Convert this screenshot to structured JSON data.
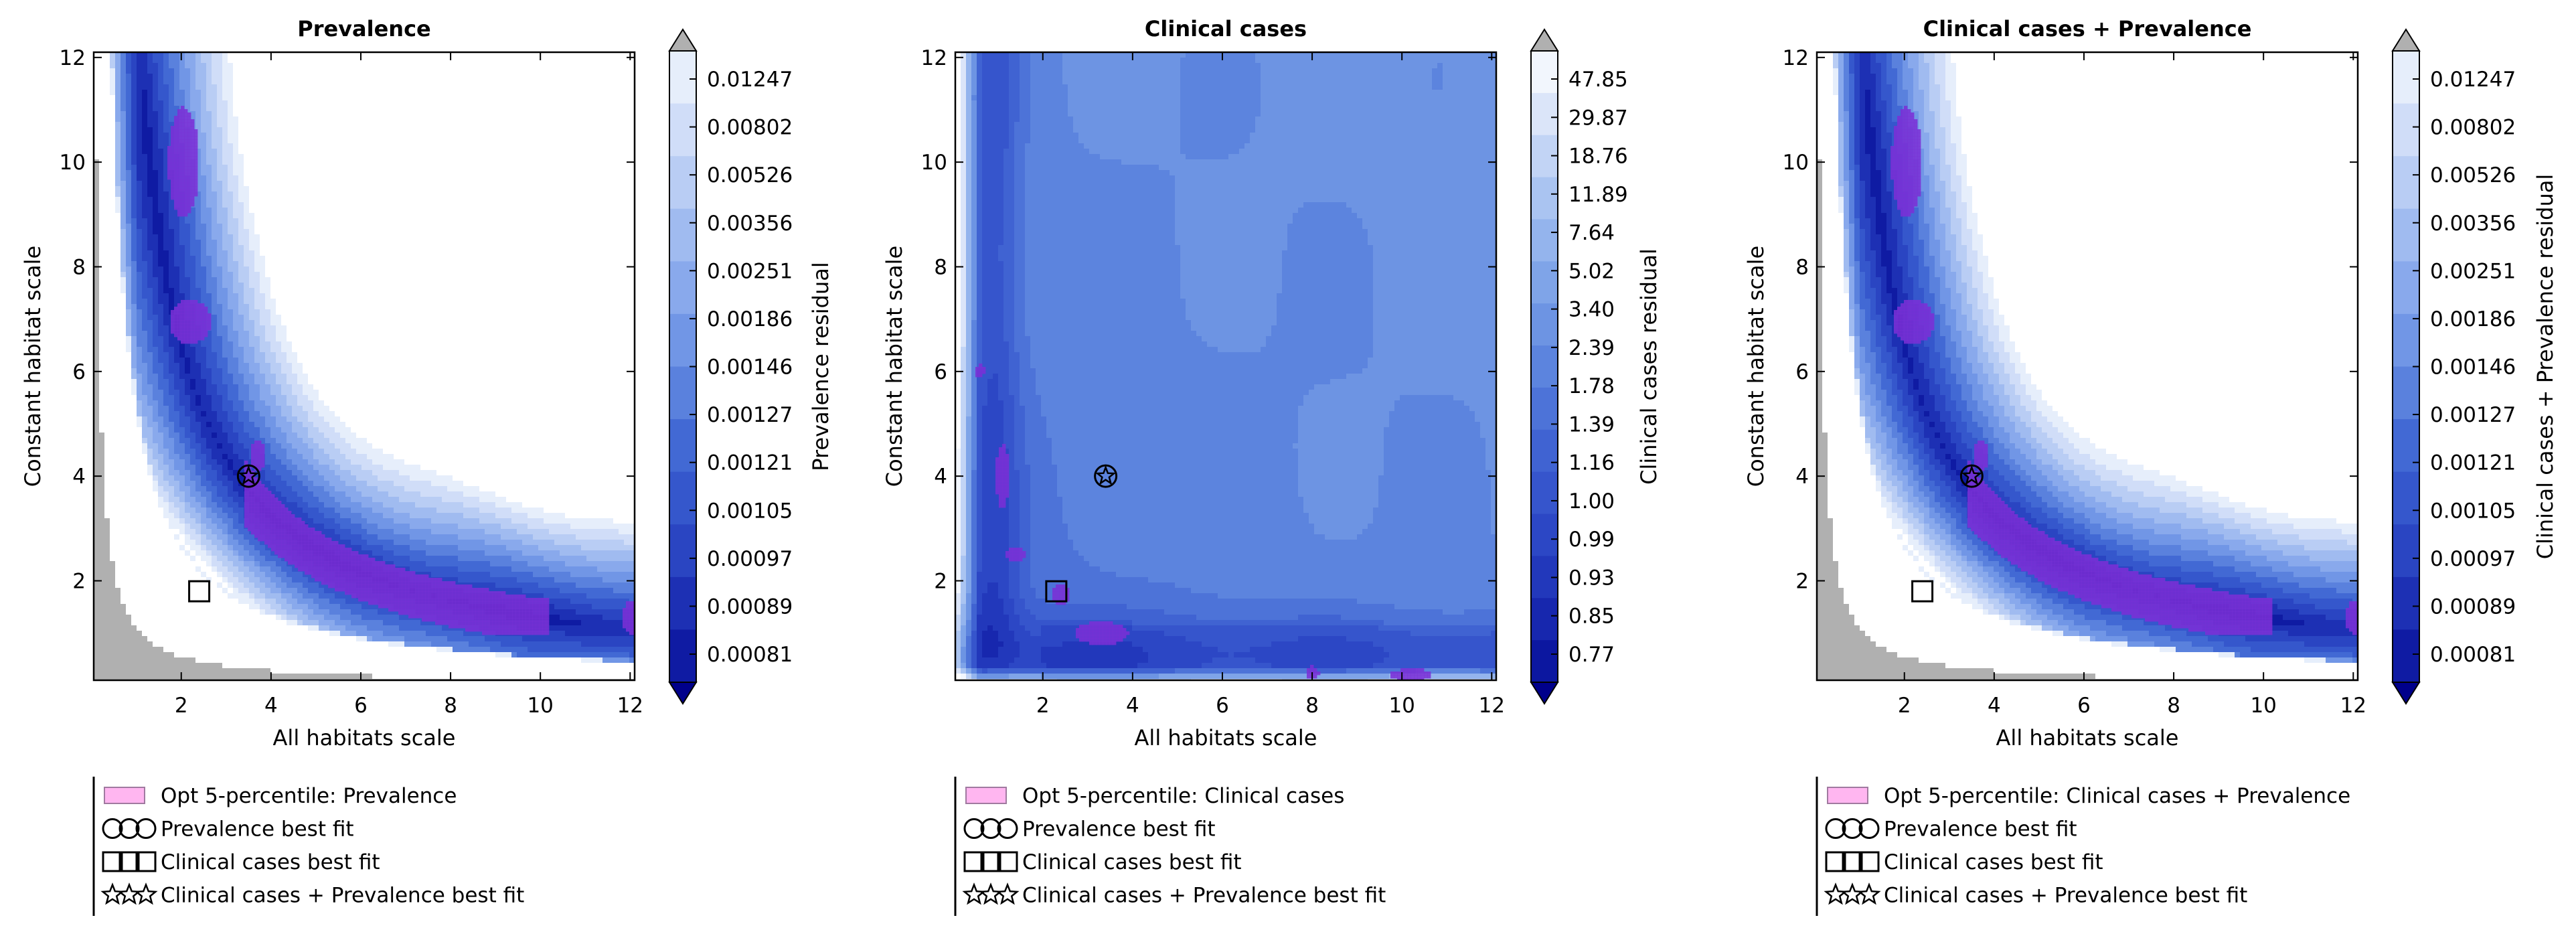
{
  "chart_data": [
    {
      "type": "heatmap",
      "title": "Prevalence",
      "xlabel": "All habitats scale",
      "ylabel": "Constant habitat scale",
      "xlim": [
        0.05,
        12.1
      ],
      "ylim": [
        0.1,
        12.1
      ],
      "xticks": [
        2,
        4,
        6,
        8,
        10,
        12
      ],
      "yticks": [
        2,
        4,
        6,
        8,
        10,
        12
      ],
      "colorbar": {
        "label": "Prevalence residual",
        "ticks": [
          "0.01247",
          "0.00802",
          "0.00526",
          "0.00356",
          "0.00251",
          "0.00186",
          "0.00146",
          "0.00127",
          "0.00121",
          "0.00105",
          "0.00097",
          "0.00089",
          "0.00081"
        ]
      },
      "opt_region": "valley",
      "markers": [
        {
          "type": "circle",
          "series": "Prevalence best fit",
          "x": 3.5,
          "y": 4.0
        },
        {
          "type": "star",
          "series": "Clinical cases + Prevalence best fit",
          "x": 3.5,
          "y": 4.0
        },
        {
          "type": "square",
          "series": "Clinical cases best fit",
          "x": 2.4,
          "y": 1.8
        }
      ],
      "legend": [
        {
          "symbol": "patch",
          "label": "Opt 5-percentile: Prevalence"
        },
        {
          "symbol": "circle",
          "label": "Prevalence best fit"
        },
        {
          "symbol": "square",
          "label": "Clinical cases best fit"
        },
        {
          "symbol": "star",
          "label": "Clinical cases + Prevalence best fit"
        }
      ]
    },
    {
      "type": "heatmap",
      "title": "Clinical cases",
      "xlabel": "All habitats scale",
      "ylabel": "Constant habitat scale",
      "xlim": [
        0.05,
        12.1
      ],
      "ylim": [
        0.1,
        12.1
      ],
      "xticks": [
        2,
        4,
        6,
        8,
        10,
        12
      ],
      "yticks": [
        2,
        4,
        6,
        8,
        10,
        12
      ],
      "colorbar": {
        "label": "Clinical cases residual",
        "ticks": [
          "47.85",
          "29.87",
          "18.76",
          "11.89",
          "7.64",
          "5.02",
          "3.40",
          "2.39",
          "1.78",
          "1.39",
          "1.16",
          "1.00",
          "0.99",
          "0.93",
          "0.85",
          "0.77"
        ]
      },
      "opt_region": "clinical",
      "markers": [
        {
          "type": "circle",
          "series": "Prevalence best fit",
          "x": 3.4,
          "y": 4.0
        },
        {
          "type": "star",
          "series": "Clinical cases + Prevalence best fit",
          "x": 3.4,
          "y": 4.0
        },
        {
          "type": "square",
          "series": "Clinical cases best fit",
          "x": 2.3,
          "y": 1.8
        }
      ],
      "legend": [
        {
          "symbol": "patch",
          "label": "Opt 5-percentile: Clinical cases"
        },
        {
          "symbol": "circle",
          "label": "Prevalence best fit"
        },
        {
          "symbol": "square",
          "label": "Clinical cases best fit"
        },
        {
          "symbol": "star",
          "label": "Clinical cases + Prevalence best fit"
        }
      ]
    },
    {
      "type": "heatmap",
      "title": "Clinical cases + Prevalence",
      "xlabel": "All habitats scale",
      "ylabel": "Constant habitat scale",
      "xlim": [
        0.05,
        12.1
      ],
      "ylim": [
        0.1,
        12.1
      ],
      "xticks": [
        2,
        4,
        6,
        8,
        10,
        12
      ],
      "yticks": [
        2,
        4,
        6,
        8,
        10,
        12
      ],
      "colorbar": {
        "label": "Clinical cases + Prevalence residual",
        "ticks": [
          "0.01247",
          "0.00802",
          "0.00526",
          "0.00356",
          "0.00251",
          "0.00186",
          "0.00146",
          "0.00127",
          "0.00121",
          "0.00105",
          "0.00097",
          "0.00089",
          "0.00081"
        ]
      },
      "opt_region": "valley",
      "markers": [
        {
          "type": "circle",
          "series": "Prevalence best fit",
          "x": 3.5,
          "y": 4.0
        },
        {
          "type": "star",
          "series": "Clinical cases + Prevalence best fit",
          "x": 3.5,
          "y": 4.0
        },
        {
          "type": "square",
          "series": "Clinical cases best fit",
          "x": 2.4,
          "y": 1.8
        }
      ],
      "legend": [
        {
          "symbol": "patch",
          "label": "Opt 5-percentile: Clinical cases + Prevalence"
        },
        {
          "symbol": "circle",
          "label": "Prevalence best fit"
        },
        {
          "symbol": "square",
          "label": "Clinical cases best fit"
        },
        {
          "symbol": "star",
          "label": "Clinical cases + Prevalence best fit"
        }
      ]
    }
  ],
  "colors": {
    "ramp": [
      "#00008b",
      "#0f1ba3",
      "#1d30b4",
      "#2a45c2",
      "#3557cc",
      "#4269d4",
      "#5a81dd",
      "#7196e6",
      "#89a9ec",
      "#a0bbf0",
      "#b9cdf4",
      "#d0ddf8",
      "#e6eefb",
      "#ffffff"
    ],
    "ramp_clinical": [
      "#00008b",
      "#0c17a0",
      "#1727ae",
      "#2238bb",
      "#2c47c5",
      "#3655cc",
      "#4063d2",
      "#4d73d8",
      "#5c84de",
      "#6d94e3",
      "#7fa4e8",
      "#94b4ed",
      "#aac4f1",
      "#c2d4f5",
      "#dbe5f9",
      "#f2f6fd",
      "#ffffff"
    ],
    "extend_over": "#b0b0b0",
    "opt_fill": "#7b2fd6",
    "opt_edge": "#cc2050",
    "legend_patch": "#ffb6f0",
    "legend_patch_edge": "#a07aa0"
  }
}
